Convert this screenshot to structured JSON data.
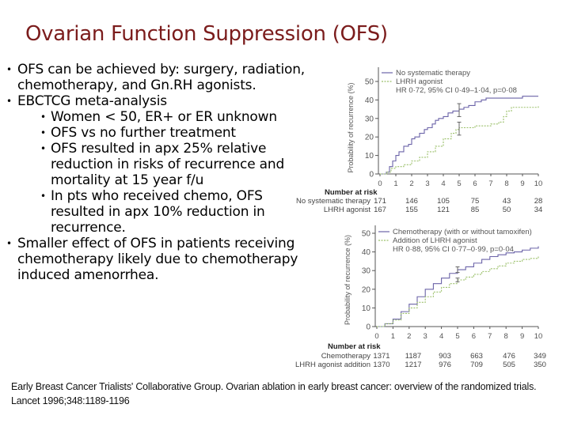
{
  "slide": {
    "title": "Ovarian Function Suppression (OFS)",
    "bullets": [
      {
        "level": 1,
        "text": "OFS can be achieved by: surgery, radiation, chemotherapy, and Gn.RH agonists."
      },
      {
        "level": 1,
        "text": "EBCTCG meta-analysis"
      },
      {
        "level": 2,
        "text": "Women < 50, ER+ or ER unknown"
      },
      {
        "level": 2,
        "text": "OFS vs no further treatment"
      },
      {
        "level": 2,
        "text": "OFS resulted in apx 25% relative reduction in risks of recurrence and mortality at 15 year f/u"
      },
      {
        "level": 2,
        "text": "In pts who received chemo, OFS resulted in apx 10% reduction in recurrence."
      },
      {
        "level": 1,
        "text": "Smaller effect of OFS in patients receiving chemotherapy likely due to chemotherapy induced amenorrhea."
      }
    ],
    "bullet_glyph": "•",
    "citation": "Early Breast Cancer Trialists' Collaborative Group. Ovarian ablation in early breast cancer: overview of the randomized trials. Lancet 1996;348:1189-1196",
    "colors": {
      "title": "#7b1c1c",
      "series_solid": "#6b63a8",
      "series_dotted": "#9bc06a"
    }
  },
  "chart_data": [
    {
      "type": "line",
      "title": "",
      "xlabel": "",
      "ylabel": "Probability of recurrence (%)",
      "xlim": [
        0,
        10
      ],
      "ylim": [
        0,
        50
      ],
      "x_ticks": [
        "0",
        "1",
        "2",
        "3",
        "4",
        "5",
        "6",
        "7",
        "8",
        "9",
        "10"
      ],
      "y_ticks": [
        "0",
        "10",
        "20",
        "30",
        "40",
        "50"
      ],
      "legend": [
        "No systematic therapy",
        "LHRH agonist"
      ],
      "annotation": "HR 0·72, 95% CI 0·49–1·04, p=0·08",
      "series": [
        {
          "name": "No systematic therapy",
          "style": "solid",
          "x": [
            0,
            0.4,
            0.6,
            0.8,
            1.0,
            1.2,
            1.5,
            1.8,
            2.0,
            2.2,
            2.5,
            2.8,
            3.0,
            3.3,
            3.5,
            3.7,
            4.0,
            4.3,
            4.6,
            5.0,
            5.3,
            5.6,
            6.0,
            6.4,
            6.7,
            7.5,
            8.5,
            9.0,
            10.0
          ],
          "y": [
            0,
            1,
            4,
            7,
            10,
            12,
            15,
            16,
            19,
            20,
            22,
            24,
            25,
            27,
            29,
            30,
            31,
            33,
            34,
            35,
            36,
            37,
            39,
            40,
            41,
            41,
            41,
            42,
            42
          ]
        },
        {
          "name": "LHRH agonist",
          "style": "dotted",
          "x": [
            0,
            0.4,
            0.7,
            1.0,
            1.5,
            2.0,
            2.5,
            3.0,
            3.5,
            4.0,
            4.5,
            4.8,
            5.0,
            5.5,
            6.0,
            6.5,
            7.0,
            7.5,
            7.8,
            8.0,
            8.3,
            9.0,
            9.8,
            10.0
          ],
          "y": [
            0,
            1,
            3,
            4,
            5,
            7,
            9,
            12,
            15,
            19,
            22,
            24,
            25,
            25,
            26,
            26,
            27,
            28,
            31,
            34,
            36,
            36,
            36,
            37
          ]
        }
      ],
      "error_bars_at_x5": [
        {
          "series": "No systematic therapy",
          "low": 31,
          "high": 38
        },
        {
          "series": "LHRH agonist",
          "low": 21,
          "high": 28
        }
      ],
      "number_at_risk": {
        "header": "Number at risk",
        "timepoints": [
          "0",
          "2",
          "4",
          "6",
          "8",
          "10"
        ],
        "rows": [
          {
            "label": "No systematic therapy",
            "values": [
              "171",
              "146",
              "105",
              "75",
              "43",
              "28"
            ]
          },
          {
            "label": "LHRH agonist",
            "values": [
              "167",
              "155",
              "121",
              "85",
              "50",
              "34"
            ]
          }
        ]
      }
    },
    {
      "type": "line",
      "title": "",
      "xlabel": "",
      "ylabel": "Probability of recurrence (%)",
      "xlim": [
        0,
        10
      ],
      "ylim": [
        0,
        50
      ],
      "x_ticks": [
        "0",
        "1",
        "2",
        "3",
        "4",
        "5",
        "6",
        "7",
        "8",
        "9",
        "10"
      ],
      "y_ticks": [
        "0",
        "10",
        "20",
        "30",
        "40",
        "50"
      ],
      "legend": [
        "Chemotherapy (with or without tamoxifen)",
        "Addition of LHRH agonist"
      ],
      "annotation": "HR 0·88, 95% CI 0·77–0·99, p=0·04",
      "series": [
        {
          "name": "Chemotherapy (with or without tamoxifen)",
          "style": "solid",
          "x": [
            0,
            0.5,
            1,
            1.5,
            2,
            2.5,
            3,
            3.5,
            4,
            4.5,
            5,
            5.5,
            6,
            6.5,
            7,
            7.5,
            8,
            8.5,
            9,
            9.5,
            10
          ],
          "y": [
            0,
            1.5,
            4,
            8,
            12,
            16,
            20,
            23,
            26,
            28.5,
            30.5,
            32,
            34,
            36,
            37.5,
            38.5,
            39.5,
            40,
            41,
            42,
            43
          ]
        },
        {
          "name": "Addition of LHRH agonist",
          "style": "dotted",
          "x": [
            0,
            0.5,
            1,
            1.5,
            2,
            2.5,
            3,
            3.5,
            4,
            4.5,
            5,
            5.5,
            6,
            6.5,
            7,
            7.5,
            8,
            8.5,
            9,
            9.5,
            10
          ],
          "y": [
            0,
            1.5,
            3.5,
            7,
            10,
            13,
            16,
            18.5,
            21,
            23,
            25,
            26.5,
            28,
            29.5,
            31,
            32.5,
            34,
            35,
            36,
            36.5,
            38
          ]
        }
      ],
      "error_bars_at_x5": [
        {
          "series": "Chemotherapy (with or without tamoxifen)",
          "low": 29,
          "high": 32
        },
        {
          "series": "Addition of LHRH agonist",
          "low": 24,
          "high": 26
        }
      ],
      "number_at_risk": {
        "header": "Number at risk",
        "timepoints": [
          "0",
          "2",
          "4",
          "6",
          "8",
          "10"
        ],
        "rows": [
          {
            "label": "Chemotherapy",
            "values": [
              "1371",
              "1187",
              "903",
              "663",
              "476",
              "349"
            ]
          },
          {
            "label": "LHRH agonist addition",
            "values": [
              "1370",
              "1217",
              "976",
              "709",
              "505",
              "350"
            ]
          }
        ]
      }
    }
  ]
}
